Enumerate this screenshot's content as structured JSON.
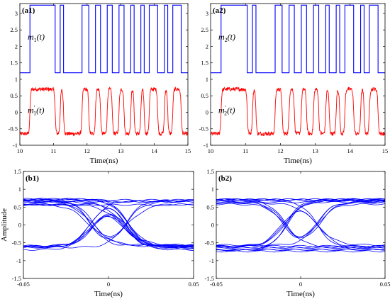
{
  "chart_data": [
    {
      "id": "a1",
      "type": "line",
      "panel_label": "(a1)",
      "xlabel": "Time(ns)",
      "ylabel": "",
      "xlim": [
        10,
        15
      ],
      "ylim": [
        -1,
        3.3
      ],
      "xticks": [
        "10",
        "11",
        "12",
        "13",
        "14",
        "15"
      ],
      "yticks": [
        "-1",
        "-0.5",
        "0",
        "0.5",
        "1",
        "1.5",
        "2",
        "2.5",
        "3"
      ],
      "series": [
        {
          "name": "m1(t)",
          "color": "#0000ff",
          "low": 1.2,
          "high": 3.25,
          "edges": [
            10.3,
            11.05,
            11.2,
            11.3,
            11.85,
            12.05,
            12.25,
            12.4,
            12.6,
            12.75,
            12.95,
            13.1,
            13.3,
            13.4,
            13.6,
            13.7,
            13.85,
            14.1,
            14.3,
            14.4,
            14.55,
            14.8
          ]
        },
        {
          "name": "m1'(t)",
          "color": "#ff0000",
          "low": -0.65,
          "high": 0.7,
          "edges": [
            10.3,
            11.05,
            11.2,
            11.3,
            11.85,
            12.05,
            12.25,
            12.4,
            12.6,
            12.75,
            12.95,
            13.1,
            13.3,
            13.4,
            13.6,
            13.7,
            13.85,
            14.1,
            14.3,
            14.4,
            14.55,
            14.8
          ]
        }
      ],
      "annotations": {
        "top": {
          "base": "m",
          "sub": "1",
          "tail": "(t)"
        },
        "bottom": {
          "base": "m",
          "sup": "'",
          "sub": "1",
          "tail": "(t)"
        }
      }
    },
    {
      "id": "a2",
      "type": "line",
      "panel_label": "(a2)",
      "xlabel": "Time(ns)",
      "ylabel": "",
      "xlim": [
        10,
        15
      ],
      "ylim": [
        -1,
        3.3
      ],
      "xticks": [
        "10",
        "11",
        "12",
        "13",
        "14",
        "15"
      ],
      "yticks": [
        "-1",
        "-0.5",
        "0",
        "0.5",
        "1",
        "1.5",
        "2",
        "2.5",
        "3"
      ],
      "series": [
        {
          "name": "m2(t)",
          "color": "#0000ff",
          "low": 1.2,
          "high": 3.25,
          "edges": [
            10.3,
            11.05,
            11.2,
            11.3,
            11.85,
            12.05,
            12.25,
            12.4,
            12.6,
            12.75,
            12.95,
            13.1,
            13.3,
            13.4,
            13.6,
            13.7,
            13.85,
            14.1,
            14.3,
            14.4,
            14.55,
            14.8
          ]
        },
        {
          "name": "m2'(t)",
          "color": "#ff0000",
          "low": -0.65,
          "high": 0.7,
          "edges": [
            10.3,
            11.05,
            11.2,
            11.3,
            11.85,
            12.05,
            12.25,
            12.4,
            12.6,
            12.75,
            12.95,
            13.1,
            13.3,
            13.4,
            13.6,
            13.7,
            13.85,
            14.1,
            14.3,
            14.4,
            14.55,
            14.8
          ]
        }
      ],
      "annotations": {
        "top": {
          "base": "m",
          "sub": "2",
          "tail": "(t)"
        },
        "bottom": {
          "base": "m",
          "sup": "'",
          "sub": "2",
          "tail": "(t)"
        }
      }
    },
    {
      "id": "b1",
      "type": "line",
      "panel_label": "(b1)",
      "xlabel": "Time(ns)",
      "ylabel": "Amplitude",
      "xlim": [
        -0.05,
        0.05
      ],
      "ylim": [
        -1.5,
        1.5
      ],
      "xticks": [
        "-0.05",
        "0",
        "0.05"
      ],
      "yticks": [
        "-1.5",
        "-1",
        "-0.5",
        "0",
        "0.5",
        "1",
        "1.5"
      ],
      "eye": {
        "color": "#0000ff",
        "level_high": 0.65,
        "level_low": -0.65,
        "crossings": [
          -0.01,
          0.01
        ],
        "traces": 22
      }
    },
    {
      "id": "b2",
      "type": "line",
      "panel_label": "(b2)",
      "xlabel": "Time(ns)",
      "ylabel": "",
      "xlim": [
        -0.05,
        0.05
      ],
      "ylim": [
        -1.5,
        1.5
      ],
      "xticks": [
        "-0.05",
        "0",
        "0.05"
      ],
      "yticks": [
        "-1.5",
        "-1",
        "-0.5",
        "0",
        "0.5",
        "1",
        "1.5"
      ],
      "eye": {
        "color": "#0000ff",
        "level_high": 0.65,
        "level_low": -0.65,
        "crossings": [
          -0.01,
          0.01
        ],
        "traces": 22
      }
    }
  ]
}
